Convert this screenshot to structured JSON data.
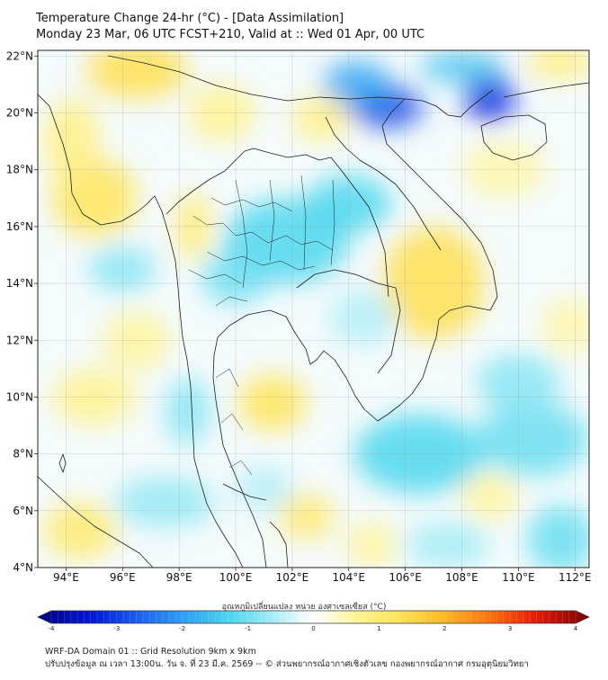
{
  "title": {
    "line1": "Temperature Change 24-hr (°C) - [Data Assimilation]",
    "line2": "Monday 23 Mar, 06 UTC FCST+210, Valid at :: Wed 01 Apr, 00 UTC"
  },
  "map": {
    "lon_range": [
      93,
      112.5
    ],
    "lat_range": [
      4,
      22.2
    ],
    "lon_ticks": [
      {
        "value": 94,
        "label": "94°E"
      },
      {
        "value": 96,
        "label": "96°E"
      },
      {
        "value": 98,
        "label": "98°E"
      },
      {
        "value": 100,
        "label": "100°E"
      },
      {
        "value": 102,
        "label": "102°E"
      },
      {
        "value": 104,
        "label": "104°E"
      },
      {
        "value": 106,
        "label": "106°E"
      },
      {
        "value": 108,
        "label": "108°E"
      },
      {
        "value": 110,
        "label": "110°E"
      },
      {
        "value": 112,
        "label": "112°E"
      }
    ],
    "lat_ticks": [
      {
        "value": 4,
        "label": "4°N"
      },
      {
        "value": 6,
        "label": "6°N"
      },
      {
        "value": 8,
        "label": "8°N"
      },
      {
        "value": 10,
        "label": "10°N"
      },
      {
        "value": 12,
        "label": "12°N"
      },
      {
        "value": 14,
        "label": "14°N"
      },
      {
        "value": 16,
        "label": "16°N"
      },
      {
        "value": 18,
        "label": "18°N"
      },
      {
        "value": 20,
        "label": "20°N"
      },
      {
        "value": 22,
        "label": "22°N"
      }
    ],
    "field_blobs": [
      {
        "lon": 105.3,
        "lat": 20.2,
        "value": -2.8,
        "rx": 1.3,
        "ry": 0.7
      },
      {
        "lon": 104.3,
        "lat": 21.0,
        "value": -1.8,
        "rx": 1.2,
        "ry": 0.8
      },
      {
        "lon": 109.0,
        "lat": 20.5,
        "value": -3.0,
        "rx": 0.9,
        "ry": 0.8
      },
      {
        "lon": 108.0,
        "lat": 21.6,
        "value": -1.5,
        "rx": 1.5,
        "ry": 0.5
      },
      {
        "lon": 111.5,
        "lat": 21.8,
        "value": 0.9,
        "rx": 1.2,
        "ry": 0.6
      },
      {
        "lon": 96.5,
        "lat": 21.5,
        "value": 1.3,
        "rx": 1.8,
        "ry": 1.0
      },
      {
        "lon": 95.0,
        "lat": 17.0,
        "value": 1.2,
        "rx": 1.5,
        "ry": 1.4
      },
      {
        "lon": 94.2,
        "lat": 19.0,
        "value": 0.8,
        "rx": 1.0,
        "ry": 1.5
      },
      {
        "lon": 99.5,
        "lat": 20.0,
        "value": 0.7,
        "rx": 1.2,
        "ry": 1.0
      },
      {
        "lon": 103.0,
        "lat": 19.8,
        "value": 0.8,
        "rx": 1.0,
        "ry": 0.8
      },
      {
        "lon": 101.8,
        "lat": 15.5,
        "value": -1.2,
        "rx": 2.2,
        "ry": 1.5
      },
      {
        "lon": 104.0,
        "lat": 16.8,
        "value": -1.2,
        "rx": 1.5,
        "ry": 1.0
      },
      {
        "lon": 100.0,
        "lat": 14.2,
        "value": -1.0,
        "rx": 1.2,
        "ry": 0.9
      },
      {
        "lon": 98.5,
        "lat": 16.0,
        "value": 1.0,
        "rx": 0.6,
        "ry": 1.2
      },
      {
        "lon": 107.0,
        "lat": 14.0,
        "value": 1.3,
        "rx": 1.8,
        "ry": 2.0
      },
      {
        "lon": 109.5,
        "lat": 18.0,
        "value": 0.5,
        "rx": 1.5,
        "ry": 1.0
      },
      {
        "lon": 96.0,
        "lat": 14.5,
        "value": -0.8,
        "rx": 1.2,
        "ry": 0.8
      },
      {
        "lon": 96.5,
        "lat": 12.0,
        "value": 0.6,
        "rx": 1.2,
        "ry": 1.0
      },
      {
        "lon": 101.3,
        "lat": 9.8,
        "value": 1.2,
        "rx": 1.2,
        "ry": 1.0
      },
      {
        "lon": 98.3,
        "lat": 9.5,
        "value": -0.8,
        "rx": 0.8,
        "ry": 1.2
      },
      {
        "lon": 95.0,
        "lat": 10.0,
        "value": 0.7,
        "rx": 1.5,
        "ry": 1.0
      },
      {
        "lon": 94.5,
        "lat": 5.3,
        "value": 1.0,
        "rx": 1.3,
        "ry": 1.0
      },
      {
        "lon": 102.5,
        "lat": 5.8,
        "value": 1.0,
        "rx": 1.0,
        "ry": 0.8
      },
      {
        "lon": 97.5,
        "lat": 6.3,
        "value": -0.7,
        "rx": 1.8,
        "ry": 0.9
      },
      {
        "lon": 101.0,
        "lat": 6.8,
        "value": -0.5,
        "rx": 1.0,
        "ry": 0.8
      },
      {
        "lon": 106.5,
        "lat": 8.0,
        "value": -1.2,
        "rx": 2.3,
        "ry": 1.4
      },
      {
        "lon": 110.5,
        "lat": 8.5,
        "value": -1.0,
        "rx": 2.0,
        "ry": 1.3
      },
      {
        "lon": 110.0,
        "lat": 10.5,
        "value": -0.8,
        "rx": 1.5,
        "ry": 1.0
      },
      {
        "lon": 111.5,
        "lat": 5.0,
        "value": -1.0,
        "rx": 1.2,
        "ry": 1.2
      },
      {
        "lon": 107.5,
        "lat": 4.8,
        "value": -0.6,
        "rx": 1.5,
        "ry": 0.8
      },
      {
        "lon": 109.0,
        "lat": 6.5,
        "value": 0.6,
        "rx": 1.0,
        "ry": 0.8
      },
      {
        "lon": 104.8,
        "lat": 4.8,
        "value": 0.6,
        "rx": 0.9,
        "ry": 0.8
      },
      {
        "lon": 111.8,
        "lat": 12.5,
        "value": 0.5,
        "rx": 1.0,
        "ry": 1.0
      },
      {
        "lon": 104.5,
        "lat": 12.8,
        "value": -0.5,
        "rx": 1.2,
        "ry": 1.0
      }
    ]
  },
  "colorbar": {
    "label": "อุณหภูมิเปลี่ยนแปลง หน่วย องศาเซลเซียส (°C)",
    "min": -4,
    "max": 4,
    "ticks": [
      {
        "value": -4,
        "label": "-4"
      },
      {
        "value": -3,
        "label": "-3"
      },
      {
        "value": -2,
        "label": "-2"
      },
      {
        "value": -1,
        "label": "-1"
      },
      {
        "value": 0,
        "label": "0"
      },
      {
        "value": 1,
        "label": "1"
      },
      {
        "value": 2,
        "label": "2"
      },
      {
        "value": 3,
        "label": "3"
      },
      {
        "value": 4,
        "label": "4"
      }
    ],
    "stops": [
      {
        "value": -4,
        "color": "#000080"
      },
      {
        "value": -3.2,
        "color": "#0018d8"
      },
      {
        "value": -2.5,
        "color": "#1e64f0"
      },
      {
        "value": -1.8,
        "color": "#32a6f2"
      },
      {
        "value": -1.2,
        "color": "#4fd7ee"
      },
      {
        "value": -0.6,
        "color": "#a4ecf6"
      },
      {
        "value": -0.2,
        "color": "#e6f9fc"
      },
      {
        "value": 0,
        "color": "#ffffff"
      },
      {
        "value": 0.2,
        "color": "#fffbe0"
      },
      {
        "value": 0.6,
        "color": "#fff59a"
      },
      {
        "value": 1.2,
        "color": "#ffe55a"
      },
      {
        "value": 1.8,
        "color": "#ffc02a"
      },
      {
        "value": 2.5,
        "color": "#ff7a10"
      },
      {
        "value": 3.2,
        "color": "#e61e08"
      },
      {
        "value": 4,
        "color": "#7a0000"
      }
    ]
  },
  "footer": {
    "line1": "WRF-DA Domain 01 :: Grid Resolution 9km x 9km",
    "line2": "ปรับปรุงข้อมูล ณ เวลา 13:00น. วัน จ. ที่ 23 มี.ค. 2569 -- © ส่วนพยากรณ์อากาศเชิงตัวเลข กองพยากรณ์อากาศ กรมอุตุนิยมวิทยา"
  }
}
